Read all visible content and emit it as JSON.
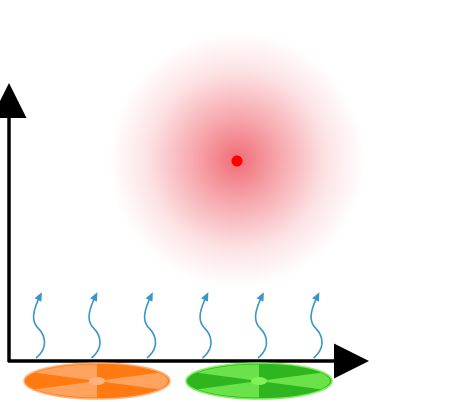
{
  "diagram": {
    "colors": {
      "background": "#ffffff",
      "axis": "#000000",
      "glow": "#f0656f",
      "source_dot": "#ff0000",
      "waves": "#3a95c8",
      "left_disk_dark": "#ff7a10",
      "left_disk_light": "#ffb27a",
      "right_disk_dark": "#2fb51f",
      "right_disk_light": "#7ff25a"
    },
    "wave_count": 6,
    "disks": [
      {
        "name": "orange-disk"
      },
      {
        "name": "green-disk"
      }
    ]
  }
}
